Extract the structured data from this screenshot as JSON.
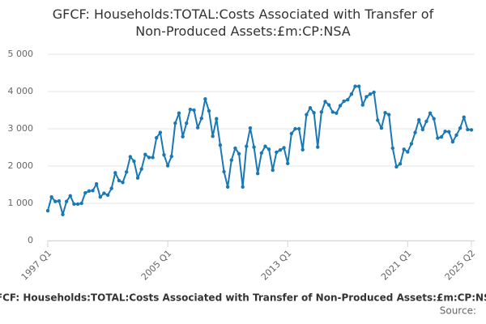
{
  "chart_data": {
    "type": "line",
    "title": "GFCF: Households:TOTAL:Costs Associated with Transfer of Non-Produced Assets:£m:CP:NSA",
    "source": "Source:",
    "categories": [
      "1997 Q1",
      null,
      null,
      null,
      null,
      null,
      null,
      null,
      null,
      null,
      null,
      null,
      null,
      null,
      null,
      null,
      null,
      null,
      null,
      null,
      null,
      null,
      null,
      null,
      null,
      null,
      null,
      null,
      null,
      null,
      null,
      null,
      "2005 Q1",
      null,
      null,
      null,
      null,
      null,
      null,
      null,
      null,
      null,
      null,
      null,
      null,
      null,
      null,
      null,
      null,
      null,
      null,
      null,
      null,
      null,
      null,
      null,
      null,
      null,
      null,
      null,
      null,
      null,
      null,
      null,
      "2013 Q1",
      null,
      null,
      null,
      null,
      null,
      null,
      null,
      null,
      null,
      null,
      null,
      null,
      null,
      null,
      null,
      null,
      null,
      null,
      null,
      null,
      null,
      null,
      null,
      null,
      null,
      null,
      null,
      null,
      null,
      null,
      null,
      "2021 Q1",
      null,
      null,
      null,
      null,
      null,
      null,
      null,
      null,
      null,
      null,
      null,
      null,
      null,
      null,
      null,
      null,
      "2025 Q2"
    ],
    "series": [
      {
        "name": "GFCF: Households:TOTAL:Costs Associated with Transfer of Non-Produced Assets:£m:CP:NSA",
        "color": "#1a78b4",
        "values": [
          800,
          1170,
          1050,
          1060,
          700,
          1050,
          1200,
          980,
          980,
          1000,
          1280,
          1330,
          1340,
          1520,
          1170,
          1270,
          1220,
          1400,
          1820,
          1610,
          1560,
          1840,
          2250,
          2130,
          1680,
          1920,
          2310,
          2230,
          2230,
          2760,
          2900,
          2300,
          2010,
          2260,
          3150,
          3420,
          2790,
          3150,
          3520,
          3500,
          3030,
          3280,
          3800,
          3480,
          2800,
          3270,
          2560,
          1850,
          1440,
          2160,
          2480,
          2330,
          1440,
          2530,
          3020,
          2510,
          1800,
          2350,
          2530,
          2450,
          1890,
          2370,
          2430,
          2490,
          2070,
          2870,
          3000,
          3000,
          2440,
          3380,
          3560,
          3430,
          2510,
          3450,
          3730,
          3640,
          3450,
          3420,
          3620,
          3740,
          3780,
          3930,
          4140,
          4140,
          3640,
          3860,
          3930,
          3980,
          3230,
          3020,
          3430,
          3380,
          2480,
          1980,
          2060,
          2450,
          2380,
          2600,
          2900,
          3240,
          2980,
          3200,
          3420,
          3270,
          2750,
          2780,
          2930,
          2920,
          2650,
          2830,
          3020,
          3310,
          2980,
          2970
        ]
      }
    ],
    "ylim": [
      0,
      5000
    ],
    "yticks": [
      0,
      {
        "value": 1000,
        "label": "1 000"
      },
      {
        "value": 2000,
        "label": "2 000"
      },
      {
        "value": 3000,
        "label": "3 000"
      },
      {
        "value": 4000,
        "label": "4 000"
      },
      {
        "value": 5000,
        "label": "5 000"
      }
    ],
    "grid": true
  }
}
